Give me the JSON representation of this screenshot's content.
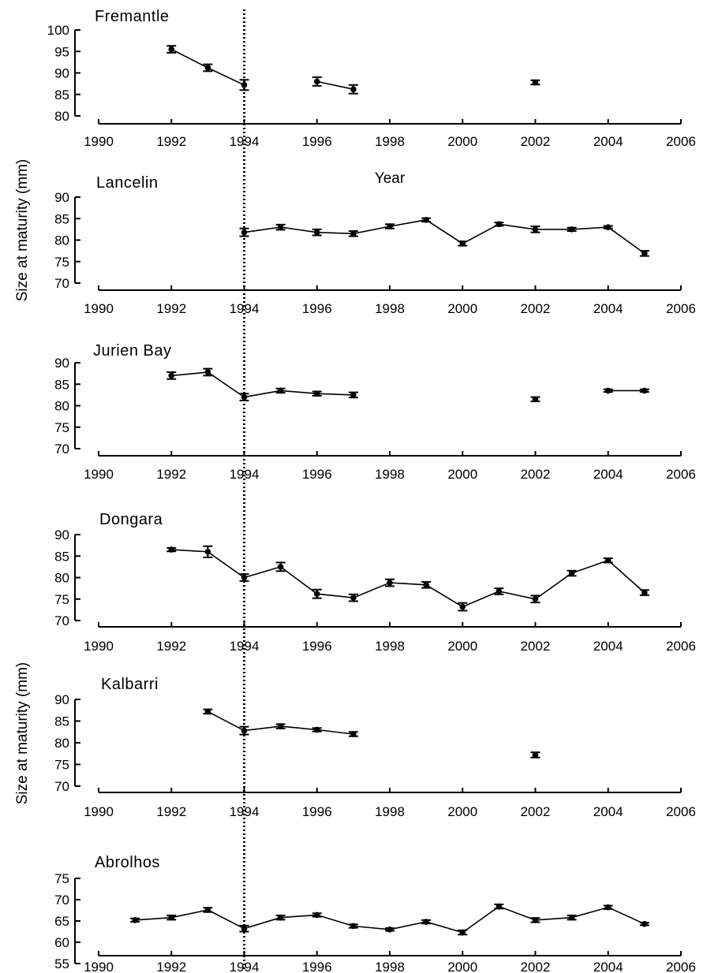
{
  "chart_data": {
    "type": "line",
    "title": "",
    "xlabel": "Year",
    "ylabel": "Size at maturity (mm)",
    "xlim": [
      1990,
      2006
    ],
    "xticks": [
      1990,
      1992,
      1994,
      1996,
      1998,
      2000,
      2002,
      2004,
      2006
    ],
    "reference_line_x": 1994,
    "panels": [
      {
        "title": "Fremantle",
        "ylim": [
          80,
          100
        ],
        "yticks": [
          80,
          85,
          90,
          95,
          100
        ],
        "segments": [
          [
            {
              "x": 1992,
              "y": 95.5,
              "err": 0.8
            },
            {
              "x": 1993,
              "y": 91.2,
              "err": 0.8
            },
            {
              "x": 1994,
              "y": 87.2,
              "err": 1.2
            }
          ],
          [
            {
              "x": 1996,
              "y": 88.0,
              "err": 1.0
            },
            {
              "x": 1997,
              "y": 86.2,
              "err": 1.0
            }
          ],
          [
            {
              "x": 2002,
              "y": 87.8,
              "err": 0.5
            }
          ]
        ]
      },
      {
        "title": "Lancelin",
        "ylim": [
          70,
          90
        ],
        "yticks": [
          70,
          75,
          80,
          85,
          90
        ],
        "segments": [
          [
            {
              "x": 1994,
              "y": 81.8,
              "err": 0.9
            },
            {
              "x": 1995,
              "y": 83.0,
              "err": 0.6
            },
            {
              "x": 1996,
              "y": 81.8,
              "err": 0.7
            },
            {
              "x": 1997,
              "y": 81.5,
              "err": 0.6
            },
            {
              "x": 1998,
              "y": 83.2,
              "err": 0.5
            },
            {
              "x": 1999,
              "y": 84.7,
              "err": 0.4
            },
            {
              "x": 2000,
              "y": 79.2,
              "err": 0.5
            },
            {
              "x": 2001,
              "y": 83.7,
              "err": 0.4
            },
            {
              "x": 2002,
              "y": 82.5,
              "err": 0.7
            },
            {
              "x": 2003,
              "y": 82.5,
              "err": 0.4
            },
            {
              "x": 2004,
              "y": 83.0,
              "err": 0.3
            },
            {
              "x": 2005,
              "y": 76.9,
              "err": 0.6
            }
          ]
        ]
      },
      {
        "title": "Jurien Bay",
        "ylim": [
          70,
          90
        ],
        "yticks": [
          70,
          75,
          80,
          85,
          90
        ],
        "segments": [
          [
            {
              "x": 1992,
              "y": 87.0,
              "err": 0.8
            },
            {
              "x": 1993,
              "y": 87.8,
              "err": 0.8
            },
            {
              "x": 1994,
              "y": 82.0,
              "err": 0.8
            },
            {
              "x": 1995,
              "y": 83.5,
              "err": 0.5
            },
            {
              "x": 1996,
              "y": 82.8,
              "err": 0.5
            },
            {
              "x": 1997,
              "y": 82.5,
              "err": 0.6
            }
          ],
          [
            {
              "x": 2002,
              "y": 81.5,
              "err": 0.5
            }
          ],
          [
            {
              "x": 2004,
              "y": 83.5,
              "err": 0.3
            },
            {
              "x": 2005,
              "y": 83.5,
              "err": 0.3
            }
          ]
        ]
      },
      {
        "title": "Dongara",
        "ylim": [
          70,
          90
        ],
        "yticks": [
          70,
          75,
          80,
          85,
          90
        ],
        "segments": [
          [
            {
              "x": 1992,
              "y": 86.5,
              "err": 0.4
            },
            {
              "x": 1993,
              "y": 86.0,
              "err": 1.3
            },
            {
              "x": 1994,
              "y": 80.0,
              "err": 0.8
            },
            {
              "x": 1995,
              "y": 82.5,
              "err": 1.0
            },
            {
              "x": 1996,
              "y": 76.2,
              "err": 1.0
            },
            {
              "x": 1997,
              "y": 75.3,
              "err": 0.8
            },
            {
              "x": 1998,
              "y": 78.8,
              "err": 0.8
            },
            {
              "x": 1999,
              "y": 78.3,
              "err": 0.7
            },
            {
              "x": 2000,
              "y": 73.2,
              "err": 0.9
            },
            {
              "x": 2001,
              "y": 76.8,
              "err": 0.7
            },
            {
              "x": 2002,
              "y": 75.0,
              "err": 0.8
            },
            {
              "x": 2003,
              "y": 81.0,
              "err": 0.6
            },
            {
              "x": 2004,
              "y": 84.0,
              "err": 0.5
            },
            {
              "x": 2005,
              "y": 76.5,
              "err": 0.6
            }
          ]
        ]
      },
      {
        "title": "Kalbarri",
        "ylim": [
          70,
          90
        ],
        "yticks": [
          70,
          75,
          80,
          85,
          90
        ],
        "segments": [
          [
            {
              "x": 1993,
              "y": 87.2,
              "err": 0.5
            },
            {
              "x": 1994,
              "y": 82.8,
              "err": 0.9
            },
            {
              "x": 1995,
              "y": 83.8,
              "err": 0.5
            },
            {
              "x": 1996,
              "y": 83.0,
              "err": 0.4
            },
            {
              "x": 1997,
              "y": 82.0,
              "err": 0.5
            }
          ],
          [
            {
              "x": 2002,
              "y": 77.2,
              "err": 0.6
            }
          ]
        ]
      },
      {
        "title": "Abrolhos",
        "ylim": [
          55,
          75
        ],
        "yticks": [
          55,
          60,
          65,
          70,
          75
        ],
        "segments": [
          [
            {
              "x": 1991,
              "y": 65.2,
              "err": 0.4
            },
            {
              "x": 1992,
              "y": 65.8,
              "err": 0.5
            },
            {
              "x": 1993,
              "y": 67.6,
              "err": 0.5
            },
            {
              "x": 1994,
              "y": 63.2,
              "err": 0.7
            },
            {
              "x": 1995,
              "y": 65.8,
              "err": 0.5
            },
            {
              "x": 1996,
              "y": 66.4,
              "err": 0.4
            },
            {
              "x": 1997,
              "y": 63.8,
              "err": 0.4
            },
            {
              "x": 1998,
              "y": 63.0,
              "err": 0.3
            },
            {
              "x": 1999,
              "y": 64.8,
              "err": 0.4
            },
            {
              "x": 2000,
              "y": 62.3,
              "err": 0.5
            },
            {
              "x": 2001,
              "y": 68.4,
              "err": 0.5
            },
            {
              "x": 2002,
              "y": 65.2,
              "err": 0.5
            },
            {
              "x": 2003,
              "y": 65.8,
              "err": 0.5
            },
            {
              "x": 2004,
              "y": 68.2,
              "err": 0.4
            },
            {
              "x": 2005,
              "y": 64.3,
              "err": 0.3
            }
          ]
        ]
      }
    ]
  }
}
